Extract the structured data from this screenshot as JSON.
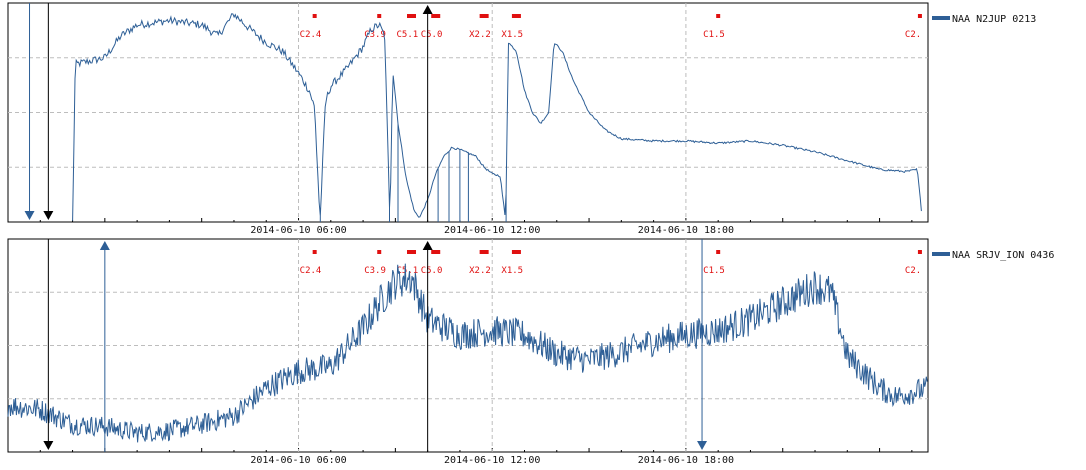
{
  "colors": {
    "series": "#2e5f96",
    "flare": "#e01010",
    "grid": "#bdbdbd",
    "axis": "#000000"
  },
  "x_range": [
    "2014-06-09 21:00",
    "2014-06-11 01:30"
  ],
  "flares": [
    {
      "label": "C2.4",
      "time": "2014-06-10 06:30"
    },
    {
      "label": "C3.9",
      "time": "2014-06-10 08:30"
    },
    {
      "label": "C5.1",
      "time": "2014-06-10 09:30"
    },
    {
      "label": "C5.0",
      "time": "2014-06-10 10:15"
    },
    {
      "label": "X2.2",
      "time": "2014-06-10 11:45"
    },
    {
      "label": "X1.5",
      "time": "2014-06-10 12:45"
    },
    {
      "label": "C1.5",
      "time": "2014-06-10 19:00"
    },
    {
      "label": "C2.",
      "time": "2014-06-11 01:15"
    }
  ],
  "chart_data": [
    {
      "type": "line",
      "series": [
        {
          "name": "NAA N2JUP 0213"
        }
      ],
      "xticks": [
        "2014-06-10 06:00",
        "2014-06-10 12:00",
        "2014-06-10 18:00"
      ],
      "grid": true,
      "legend": "top-right",
      "markers": [
        {
          "time": "2014-06-09 21:40",
          "kind": "down"
        },
        {
          "time": "2014-06-09 22:15",
          "kind": "down"
        },
        {
          "time": "2014-06-10 10:00",
          "kind": "up"
        }
      ],
      "points": [
        [
          "2014-06-09 23:00",
          0
        ],
        [
          "2014-06-09 23:05",
          0.72
        ],
        [
          "2014-06-10 00:00",
          0.75
        ],
        [
          "2014-06-10 00:30",
          0.85
        ],
        [
          "2014-06-10 01:00",
          0.9
        ],
        [
          "2014-06-10 02:00",
          0.92
        ],
        [
          "2014-06-10 03:00",
          0.9
        ],
        [
          "2014-06-10 03:30",
          0.85
        ],
        [
          "2014-06-10 04:00",
          0.95
        ],
        [
          "2014-06-10 04:30",
          0.88
        ],
        [
          "2014-06-10 05:00",
          0.82
        ],
        [
          "2014-06-10 05:30",
          0.78
        ],
        [
          "2014-06-10 06:00",
          0.68
        ],
        [
          "2014-06-10 06:20",
          0.6
        ],
        [
          "2014-06-10 06:30",
          0.52
        ],
        [
          "2014-06-10 06:40",
          0.0
        ],
        [
          "2014-06-10 06:50",
          0.55
        ],
        [
          "2014-06-10 07:00",
          0.62
        ],
        [
          "2014-06-10 07:30",
          0.7
        ],
        [
          "2014-06-10 08:00",
          0.8
        ],
        [
          "2014-06-10 08:15",
          0.88
        ],
        [
          "2014-06-10 08:30",
          0.9
        ],
        [
          "2014-06-10 08:40",
          0.85
        ],
        [
          "2014-06-10 08:50",
          0.0
        ],
        [
          "2014-06-10 08:55",
          0.7
        ],
        [
          "2014-06-10 09:05",
          0.45
        ],
        [
          "2014-06-10 09:20",
          0.2
        ],
        [
          "2014-06-10 09:35",
          0.05
        ],
        [
          "2014-06-10 09:45",
          0.02
        ],
        [
          "2014-06-10 10:00",
          0.1
        ],
        [
          "2014-06-10 10:15",
          0.22
        ],
        [
          "2014-06-10 10:30",
          0.3
        ],
        [
          "2014-06-10 10:45",
          0.34
        ],
        [
          "2014-06-10 11:00",
          0.33
        ],
        [
          "2014-06-10 11:30",
          0.3
        ],
        [
          "2014-06-10 11:45",
          0.25
        ],
        [
          "2014-06-10 12:00",
          0.22
        ],
        [
          "2014-06-10 12:15",
          0.21
        ],
        [
          "2014-06-10 12:25",
          0.0
        ],
        [
          "2014-06-10 12:30",
          0.82
        ],
        [
          "2014-06-10 12:45",
          0.78
        ],
        [
          "2014-06-10 13:00",
          0.6
        ],
        [
          "2014-06-10 13:15",
          0.5
        ],
        [
          "2014-06-10 13:30",
          0.45
        ],
        [
          "2014-06-10 13:45",
          0.5
        ],
        [
          "2014-06-10 13:55",
          0.82
        ],
        [
          "2014-06-10 14:10",
          0.78
        ],
        [
          "2014-06-10 14:30",
          0.65
        ],
        [
          "2014-06-10 15:00",
          0.5
        ],
        [
          "2014-06-10 15:30",
          0.42
        ],
        [
          "2014-06-10 16:00",
          0.38
        ],
        [
          "2014-06-10 17:00",
          0.37
        ],
        [
          "2014-06-10 18:00",
          0.37
        ],
        [
          "2014-06-10 19:00",
          0.36
        ],
        [
          "2014-06-10 20:00",
          0.37
        ],
        [
          "2014-06-10 21:00",
          0.35
        ],
        [
          "2014-06-10 22:00",
          0.32
        ],
        [
          "2014-06-10 23:00",
          0.28
        ],
        [
          "2014-06-11 00:00",
          0.24
        ],
        [
          "2014-06-11 00:50",
          0.23
        ],
        [
          "2014-06-11 01:10",
          0.24
        ],
        [
          "2014-06-11 01:20",
          0.0
        ]
      ]
    },
    {
      "type": "line",
      "series": [
        {
          "name": "NAA SRJV_ION 0436"
        }
      ],
      "xticks": [
        "2014-06-10 06:00",
        "2014-06-10 12:00",
        "2014-06-10 18:00"
      ],
      "grid": true,
      "legend": "top-right",
      "markers": [
        {
          "time": "2014-06-09 22:15",
          "kind": "down"
        },
        {
          "time": "2014-06-10 00:00",
          "kind": "up"
        },
        {
          "time": "2014-06-10 10:00",
          "kind": "up"
        },
        {
          "time": "2014-06-10 18:30",
          "kind": "down"
        }
      ],
      "points": [
        [
          "2014-06-09 21:00",
          0.22
        ],
        [
          "2014-06-09 22:00",
          0.2
        ],
        [
          "2014-06-09 23:00",
          0.13
        ],
        [
          "2014-06-10 00:00",
          0.12
        ],
        [
          "2014-06-10 01:00",
          0.09
        ],
        [
          "2014-06-10 02:00",
          0.1
        ],
        [
          "2014-06-10 03:00",
          0.13
        ],
        [
          "2014-06-10 04:00",
          0.17
        ],
        [
          "2014-06-10 05:00",
          0.3
        ],
        [
          "2014-06-10 06:00",
          0.38
        ],
        [
          "2014-06-10 07:00",
          0.4
        ],
        [
          "2014-06-10 08:00",
          0.58
        ],
        [
          "2014-06-10 08:30",
          0.7
        ],
        [
          "2014-06-10 09:00",
          0.8
        ],
        [
          "2014-06-10 09:30",
          0.82
        ],
        [
          "2014-06-10 10:00",
          0.62
        ],
        [
          "2014-06-10 11:00",
          0.55
        ],
        [
          "2014-06-10 12:00",
          0.57
        ],
        [
          "2014-06-10 13:00",
          0.55
        ],
        [
          "2014-06-10 14:00",
          0.46
        ],
        [
          "2014-06-10 15:00",
          0.43
        ],
        [
          "2014-06-10 16:00",
          0.47
        ],
        [
          "2014-06-10 17:00",
          0.52
        ],
        [
          "2014-06-10 18:00",
          0.55
        ],
        [
          "2014-06-10 19:00",
          0.57
        ],
        [
          "2014-06-10 20:00",
          0.62
        ],
        [
          "2014-06-10 21:00",
          0.7
        ],
        [
          "2014-06-10 22:00",
          0.78
        ],
        [
          "2014-06-10 22:30",
          0.75
        ],
        [
          "2014-06-10 23:00",
          0.45
        ],
        [
          "2014-06-11 00:00",
          0.3
        ],
        [
          "2014-06-11 00:30",
          0.26
        ],
        [
          "2014-06-11 01:30",
          0.3
        ]
      ]
    }
  ]
}
